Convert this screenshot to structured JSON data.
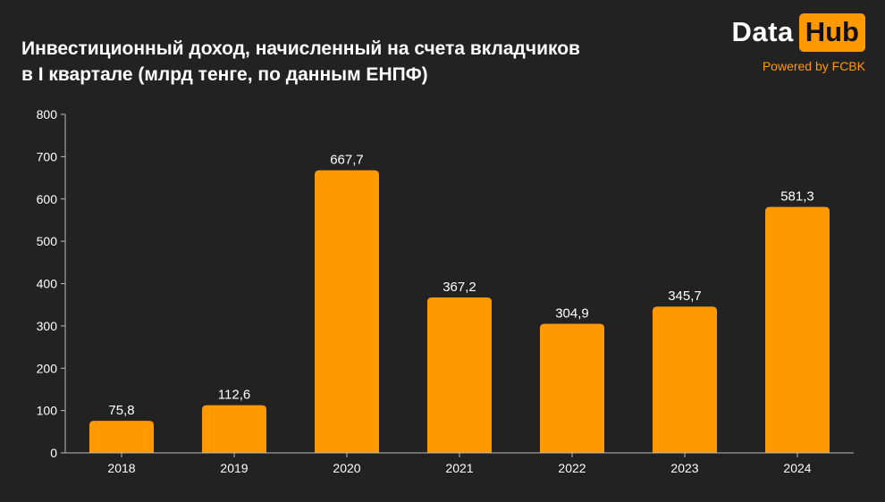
{
  "header": {
    "title_line1": "Инвестиционный доход, начисленный на счета вкладчиков",
    "title_line2": "в I квартале (млрд тенге, по данным ЕНПФ)"
  },
  "brand": {
    "logo_left": "Data",
    "logo_right": "Hub",
    "powered": "Powered by FCBK",
    "accent_color": "#ff9900"
  },
  "chart_data": {
    "type": "bar",
    "categories": [
      "2018",
      "2019",
      "2020",
      "2021",
      "2022",
      "2023",
      "2024"
    ],
    "values": [
      75.8,
      112.6,
      667.7,
      367.2,
      304.9,
      345.7,
      581.3
    ],
    "value_labels": [
      "75,8",
      "112,6",
      "667,7",
      "367,2",
      "304,9",
      "345,7",
      "581,3"
    ],
    "title": "Инвестиционный доход, начисленный на счета вкладчиков в I квартале (млрд тенге, по данным ЕНПФ)",
    "xlabel": "",
    "ylabel": "",
    "ylim": [
      0,
      800
    ],
    "yticks": [
      "0",
      "100",
      "200",
      "300",
      "400",
      "500",
      "600",
      "700",
      "800"
    ],
    "grid": false,
    "legend": "none",
    "bar_color": "#ff9900",
    "background": "#222222"
  }
}
